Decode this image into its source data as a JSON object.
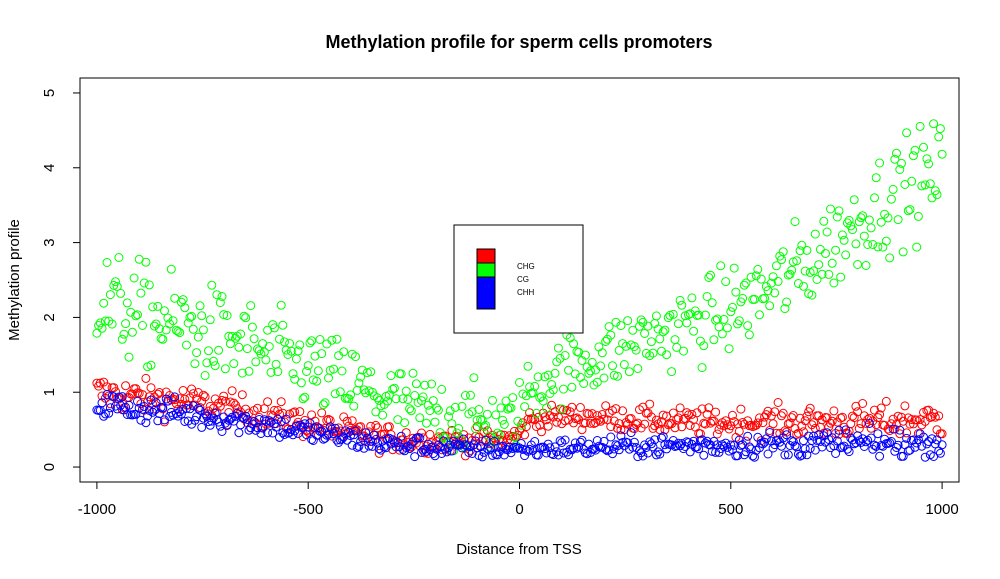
{
  "chart_data": {
    "type": "scatter",
    "title": "Methylation profile for sperm cells promoters",
    "xlabel": "Distance from TSS",
    "ylabel": "Methylation profile",
    "xlim": [
      -1040,
      1040
    ],
    "ylim": [
      -0.2,
      5.2
    ],
    "x_ticks": [
      -1000,
      -500,
      0,
      500,
      1000
    ],
    "y_ticks": [
      0,
      1,
      2,
      3,
      4,
      5
    ],
    "x_tick_labels": [
      "-1000",
      "-500",
      "0",
      "500",
      "1000"
    ],
    "y_tick_labels": [
      "0",
      "1",
      "2",
      "3",
      "4",
      "5"
    ],
    "grid": false,
    "legend_position": "center",
    "marker": "open-circle",
    "x_step": 4,
    "series": [
      {
        "name": "CHG",
        "color": "#ff0000",
        "trend_x": [
          -1000,
          -900,
          -800,
          -700,
          -600,
          -500,
          -400,
          -300,
          -200,
          -100,
          -20,
          0,
          20,
          100,
          200,
          300,
          400,
          500,
          600,
          700,
          800,
          900,
          1000
        ],
        "trend_y": [
          1.0,
          0.93,
          0.88,
          0.8,
          0.7,
          0.58,
          0.46,
          0.38,
          0.36,
          0.35,
          0.38,
          0.45,
          0.62,
          0.68,
          0.66,
          0.63,
          0.6,
          0.59,
          0.6,
          0.6,
          0.61,
          0.62,
          0.63
        ],
        "spread": 0.12
      },
      {
        "name": "CG",
        "color": "#00ff00",
        "trend_x": [
          -1000,
          -900,
          -800,
          -700,
          -600,
          -500,
          -400,
          -300,
          -200,
          -100,
          -20,
          0,
          20,
          100,
          200,
          300,
          400,
          500,
          600,
          700,
          800,
          900,
          1000
        ],
        "trend_y": [
          2.2,
          2.05,
          1.9,
          1.72,
          1.52,
          1.32,
          1.1,
          0.88,
          0.72,
          0.62,
          0.6,
          0.75,
          1.0,
          1.3,
          1.5,
          1.7,
          1.9,
          2.1,
          2.4,
          2.8,
          3.25,
          3.7,
          3.95
        ],
        "spread": 0.35
      },
      {
        "name": "CHH",
        "color": "#0000ff",
        "trend_x": [
          -1000,
          -900,
          -800,
          -700,
          -600,
          -500,
          -400,
          -300,
          -200,
          -100,
          0,
          100,
          200,
          300,
          400,
          500,
          600,
          700,
          800,
          900,
          1000
        ],
        "trend_y": [
          0.85,
          0.78,
          0.72,
          0.65,
          0.57,
          0.47,
          0.38,
          0.3,
          0.26,
          0.24,
          0.24,
          0.25,
          0.27,
          0.28,
          0.29,
          0.29,
          0.3,
          0.3,
          0.31,
          0.31,
          0.32
        ],
        "spread": 0.1
      }
    ]
  }
}
